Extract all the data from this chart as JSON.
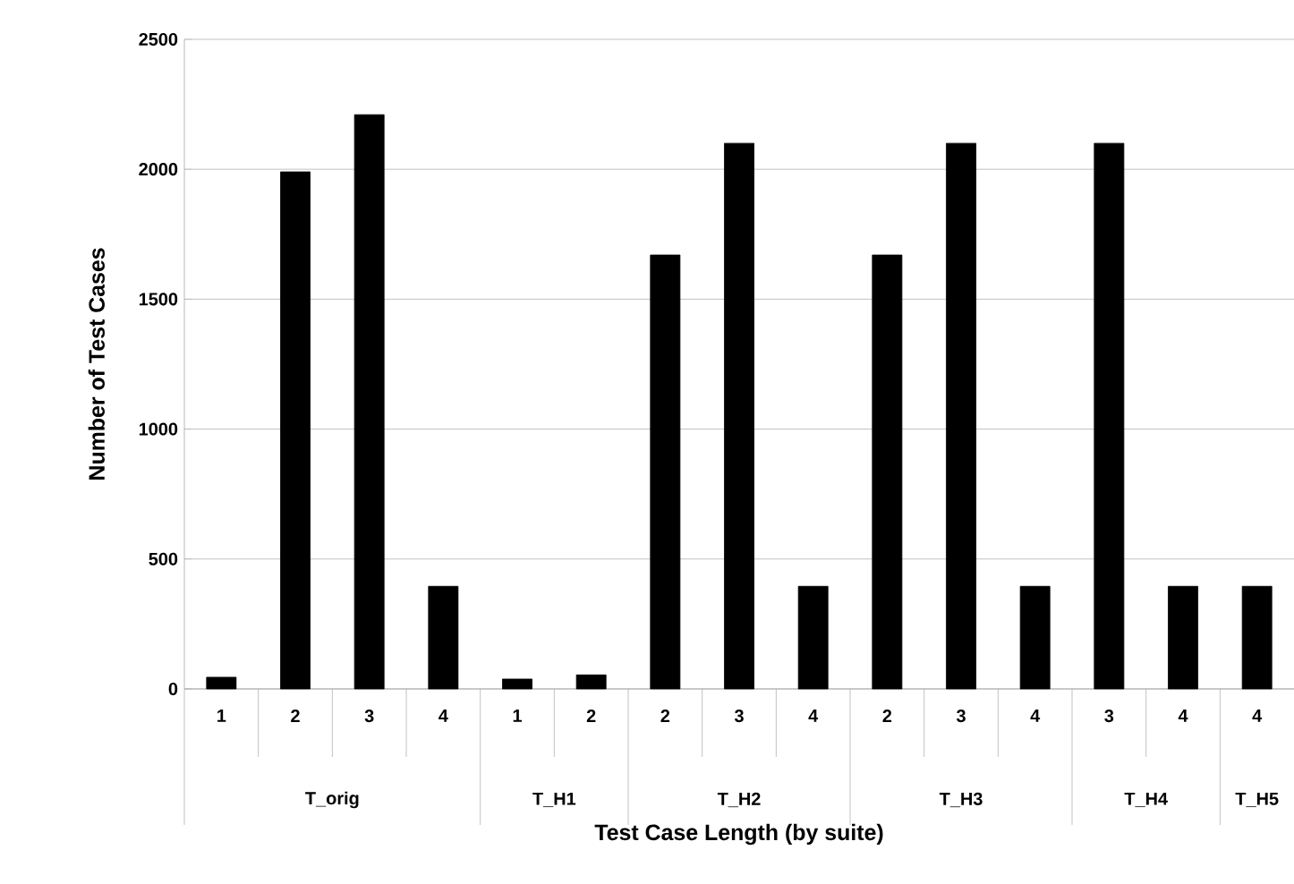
{
  "chart_data": {
    "type": "bar",
    "xlabel": "Test Case Length (by suite)",
    "ylabel": "Number of Test Cases",
    "categories": [
      "1",
      "2",
      "3",
      "4",
      "1",
      "2",
      "2",
      "3",
      "4",
      "2",
      "3",
      "4",
      "3",
      "4",
      "4"
    ],
    "values": [
      45,
      1990,
      2210,
      395,
      38,
      54,
      1670,
      2100,
      395,
      1670,
      2100,
      395,
      2100,
      395,
      395
    ],
    "color": "#000000",
    "annotations": [
      "T_orig",
      "T_H1",
      "T_H2",
      "T_H3",
      "T_H4",
      "T_H5"
    ],
    "ylim": [
      0,
      2500
    ],
    "yticks": [
      0,
      500,
      1000,
      1500,
      2000,
      2500
    ],
    "grid": "y"
  }
}
